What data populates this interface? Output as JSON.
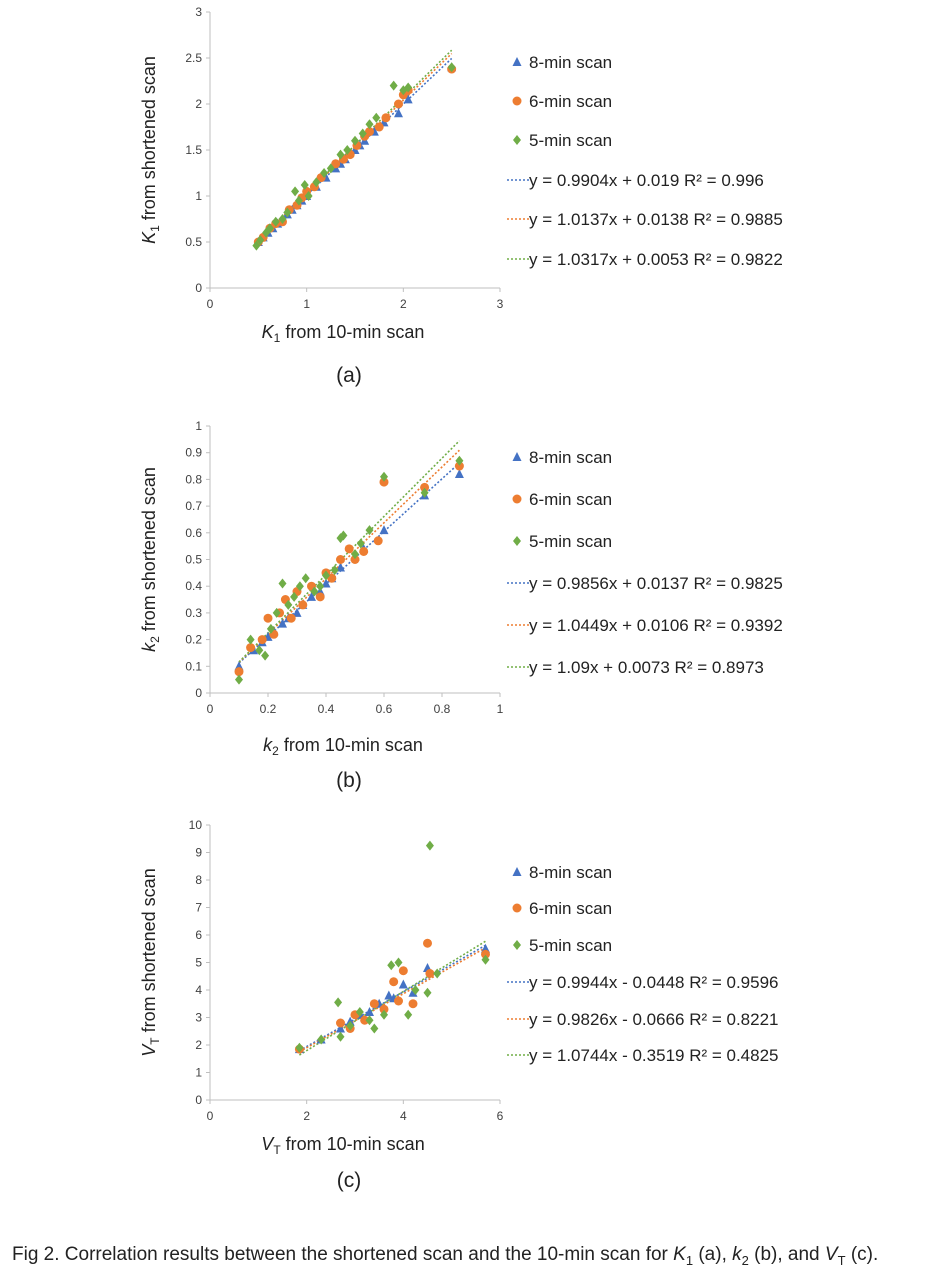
{
  "figure_caption": {
    "prefix": "Fig 2. Correlation results between the shortened scan and the 10-min scan for ",
    "k1_letter": "K",
    "k1_sub": "1",
    "k1_suffix": " (a), ",
    "k2_letter": "k",
    "k2_sub": "2",
    "k2_suffix": " (b), and ",
    "vt_letter": "V",
    "vt_sub": "T",
    "vt_suffix": " (c)."
  },
  "colors": {
    "8-min scan": "#4472C4",
    "6-min scan": "#ED7D31",
    "5-min scan": "#70AD47"
  },
  "chart_data": [
    {
      "type": "scatter",
      "panel_label": "(a)",
      "xlabel": {
        "letter": "K",
        "sub": "1",
        "rest": " from 10-min scan"
      },
      "ylabel": {
        "letter": "K",
        "sub": "1",
        "rest": " from shortened scan"
      },
      "xlim": [
        0,
        3
      ],
      "ylim": [
        0,
        3
      ],
      "xticks": [
        0,
        1,
        2,
        3
      ],
      "yticks": [
        0,
        0.5,
        1,
        1.5,
        2,
        2.5,
        3
      ],
      "ytick_labels": [
        "0",
        "0.5",
        "1",
        "1.5",
        "2",
        "2.5",
        "3"
      ],
      "grid": false,
      "series": [
        {
          "name": "8-min scan",
          "marker": "triangle",
          "color": "#4472C4",
          "trendline": {
            "label": "y = 0.9904x + 0.019   R² = 0.996",
            "slope": 0.9904,
            "intercept": 0.019
          },
          "x": [
            0.5,
            0.55,
            0.6,
            0.65,
            0.7,
            0.8,
            0.85,
            0.9,
            0.95,
            1.0,
            1.1,
            1.2,
            1.3,
            1.35,
            1.4,
            1.5,
            1.55,
            1.6,
            1.7,
            1.8,
            1.95,
            2.05,
            2.5
          ],
          "y": [
            0.5,
            0.55,
            0.6,
            0.65,
            0.7,
            0.8,
            0.85,
            0.9,
            0.95,
            1.0,
            1.1,
            1.2,
            1.3,
            1.35,
            1.4,
            1.5,
            1.55,
            1.6,
            1.7,
            1.8,
            1.9,
            2.05,
            2.4
          ]
        },
        {
          "name": "6-min scan",
          "marker": "circle",
          "color": "#ED7D31",
          "trendline": {
            "label": "y = 1.0137x + 0.0138  R² = 0.9885",
            "slope": 1.0137,
            "intercept": 0.0138
          },
          "x": [
            0.5,
            0.55,
            0.62,
            0.68,
            0.75,
            0.82,
            0.9,
            0.95,
            1.0,
            1.08,
            1.15,
            1.3,
            1.38,
            1.45,
            1.52,
            1.6,
            1.65,
            1.75,
            1.82,
            1.95,
            2.0,
            2.05,
            2.5
          ],
          "y": [
            0.5,
            0.55,
            0.65,
            0.7,
            0.72,
            0.85,
            0.9,
            0.98,
            1.05,
            1.1,
            1.2,
            1.35,
            1.4,
            1.45,
            1.55,
            1.65,
            1.7,
            1.75,
            1.85,
            2.0,
            2.1,
            2.15,
            2.38
          ]
        },
        {
          "name": "5-min scan",
          "marker": "diamond",
          "color": "#70AD47",
          "trendline": {
            "label": "y = 1.0317x + 0.0053  R² = 0.9822",
            "slope": 1.0317,
            "intercept": 0.0053
          },
          "x": [
            0.48,
            0.52,
            0.58,
            0.62,
            0.68,
            0.75,
            0.8,
            0.88,
            0.92,
            0.98,
            1.02,
            1.1,
            1.18,
            1.25,
            1.35,
            1.42,
            1.5,
            1.58,
            1.65,
            1.72,
            1.9,
            2.0,
            2.05,
            2.5
          ],
          "y": [
            0.46,
            0.52,
            0.6,
            0.65,
            0.72,
            0.75,
            0.82,
            1.05,
            0.95,
            1.12,
            1.0,
            1.15,
            1.25,
            1.3,
            1.45,
            1.5,
            1.6,
            1.68,
            1.78,
            1.85,
            2.2,
            2.15,
            2.18,
            2.4
          ]
        }
      ]
    },
    {
      "type": "scatter",
      "panel_label": "(b)",
      "xlabel": {
        "letter": "k",
        "sub": "2",
        "rest": " from 10-min scan"
      },
      "ylabel": {
        "letter": "k",
        "sub": "2",
        "rest": " from shortened scan"
      },
      "xlim": [
        0,
        1
      ],
      "ylim": [
        0,
        1
      ],
      "xticks": [
        0,
        0.2,
        0.4,
        0.6,
        0.8,
        1
      ],
      "yticks": [
        0,
        0.1,
        0.2,
        0.3,
        0.4,
        0.5,
        0.6,
        0.7,
        0.8,
        0.9,
        1
      ],
      "xtick_labels": [
        "0",
        "0.2",
        "0.4",
        "0.6",
        "0.8",
        "1"
      ],
      "ytick_labels": [
        "0",
        "0.1",
        "0.2",
        "0.3",
        "0.4",
        "0.5",
        "0.6",
        "0.7",
        "0.8",
        "0.9",
        "1"
      ],
      "grid": false,
      "series": [
        {
          "name": "8-min scan",
          "marker": "triangle",
          "color": "#4472C4",
          "trendline": {
            "label": "y = 0.9856x + 0.0137  R² = 0.9825",
            "slope": 0.9856,
            "intercept": 0.0137
          },
          "x": [
            0.1,
            0.15,
            0.18,
            0.2,
            0.22,
            0.25,
            0.27,
            0.3,
            0.32,
            0.35,
            0.38,
            0.4,
            0.42,
            0.45,
            0.5,
            0.53,
            0.6,
            0.74,
            0.86
          ],
          "y": [
            0.1,
            0.16,
            0.19,
            0.21,
            0.23,
            0.26,
            0.28,
            0.3,
            0.33,
            0.36,
            0.38,
            0.41,
            0.43,
            0.47,
            0.51,
            0.54,
            0.61,
            0.74,
            0.82
          ]
        },
        {
          "name": "6-min scan",
          "marker": "circle",
          "color": "#ED7D31",
          "trendline": {
            "label": "y = 1.0449x + 0.0106  R² = 0.9392",
            "slope": 1.0449,
            "intercept": 0.0106
          },
          "x": [
            0.1,
            0.14,
            0.18,
            0.2,
            0.22,
            0.24,
            0.26,
            0.28,
            0.3,
            0.32,
            0.35,
            0.38,
            0.4,
            0.42,
            0.45,
            0.48,
            0.5,
            0.53,
            0.58,
            0.6,
            0.74,
            0.86
          ],
          "y": [
            0.08,
            0.17,
            0.2,
            0.28,
            0.22,
            0.3,
            0.35,
            0.28,
            0.38,
            0.33,
            0.4,
            0.36,
            0.45,
            0.43,
            0.5,
            0.54,
            0.5,
            0.53,
            0.57,
            0.79,
            0.77,
            0.85
          ]
        },
        {
          "name": "5-min scan",
          "marker": "diamond",
          "color": "#70AD47",
          "trendline": {
            "label": "y = 1.09x + 0.0073  R² = 0.8973",
            "slope": 1.09,
            "intercept": 0.0073
          },
          "x": [
            0.1,
            0.14,
            0.17,
            0.19,
            0.21,
            0.23,
            0.25,
            0.27,
            0.29,
            0.31,
            0.33,
            0.36,
            0.38,
            0.4,
            0.43,
            0.45,
            0.46,
            0.5,
            0.52,
            0.55,
            0.6,
            0.74,
            0.86
          ],
          "y": [
            0.05,
            0.2,
            0.16,
            0.14,
            0.24,
            0.3,
            0.41,
            0.33,
            0.36,
            0.4,
            0.43,
            0.38,
            0.4,
            0.44,
            0.46,
            0.58,
            0.59,
            0.52,
            0.56,
            0.61,
            0.81,
            0.75,
            0.87
          ]
        }
      ]
    },
    {
      "type": "scatter",
      "panel_label": "(c)",
      "xlabel": {
        "letter": "V",
        "sub": "T",
        "rest": " from 10-min scan"
      },
      "ylabel": {
        "letter": "V",
        "sub": "T",
        "rest": " from shortened scan"
      },
      "xlim": [
        0,
        6
      ],
      "ylim": [
        0,
        10
      ],
      "xticks": [
        0,
        2,
        4,
        6
      ],
      "yticks": [
        0,
        1,
        2,
        3,
        4,
        5,
        6,
        7,
        8,
        9,
        10
      ],
      "ytick_labels": [
        "0",
        "1",
        "2",
        "3",
        "4",
        "5",
        "6",
        "7",
        "8",
        "9",
        "10"
      ],
      "grid": false,
      "series": [
        {
          "name": "8-min scan",
          "marker": "triangle",
          "color": "#4472C4",
          "trendline": {
            "label": "y = 0.9944x - 0.0448  R² = 0.9596",
            "slope": 0.9944,
            "intercept": -0.0448
          },
          "x": [
            1.85,
            2.3,
            2.7,
            2.9,
            3.1,
            3.3,
            3.5,
            3.7,
            3.8,
            4.0,
            4.2,
            4.5,
            5.7
          ],
          "y": [
            1.85,
            2.2,
            2.6,
            2.85,
            3.1,
            3.2,
            3.5,
            3.8,
            3.7,
            4.2,
            3.9,
            4.8,
            5.5
          ]
        },
        {
          "name": "6-min scan",
          "marker": "circle",
          "color": "#ED7D31",
          "trendline": {
            "label": "y = 0.9826x - 0.0666  R² = 0.8221",
            "slope": 0.9826,
            "intercept": -0.0666
          },
          "x": [
            1.85,
            2.7,
            2.9,
            3.0,
            3.2,
            3.4,
            3.6,
            3.8,
            3.9,
            4.0,
            4.2,
            4.5,
            4.55,
            5.7
          ],
          "y": [
            1.85,
            2.8,
            2.6,
            3.1,
            2.9,
            3.5,
            3.3,
            4.3,
            3.6,
            4.7,
            3.5,
            5.7,
            4.6,
            5.3
          ]
        },
        {
          "name": "5-min scan",
          "marker": "diamond",
          "color": "#70AD47",
          "trendline": {
            "label": "y = 1.0744x - 0.3519  R² = 0.4825",
            "slope": 1.0744,
            "intercept": -0.3519
          },
          "x": [
            1.85,
            2.3,
            2.65,
            2.7,
            2.9,
            3.1,
            3.3,
            3.4,
            3.6,
            3.75,
            3.9,
            4.1,
            4.25,
            4.5,
            4.55,
            4.7,
            5.7
          ],
          "y": [
            1.9,
            2.2,
            3.55,
            2.3,
            2.7,
            3.2,
            2.9,
            2.6,
            3.1,
            4.9,
            5.0,
            3.1,
            4.0,
            3.9,
            9.25,
            4.6,
            5.1
          ]
        }
      ]
    }
  ]
}
